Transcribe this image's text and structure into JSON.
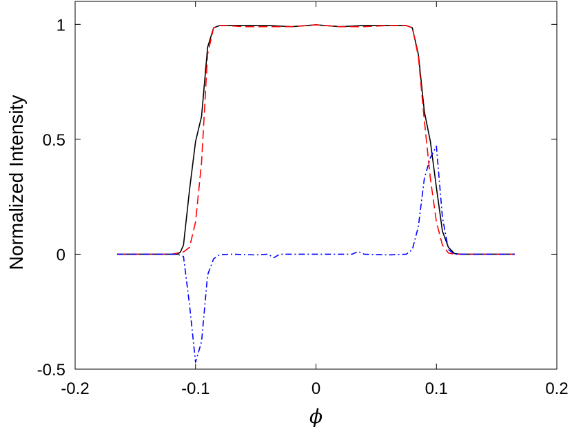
{
  "chart_data": {
    "type": "line",
    "title": "",
    "xlabel": "ϕ",
    "ylabel": "Normalized Intensity",
    "xlim": [
      -0.2,
      0.2
    ],
    "ylim": [
      -0.5,
      1.1
    ],
    "xticks": [
      -0.2,
      -0.1,
      0,
      0.1,
      0.2
    ],
    "xtick_labels": [
      "-0.2",
      "-0.1",
      "0",
      "0.1",
      "0.2"
    ],
    "yticks": [
      -0.5,
      0,
      0.5,
      1
    ],
    "ytick_labels": [
      "-0.5",
      "0",
      "0.5",
      "1"
    ],
    "grid": false,
    "legend": null,
    "series": [
      {
        "color": "#000000",
        "style": "solid",
        "x": [
          -0.165,
          -0.12,
          -0.115,
          -0.1125,
          -0.11,
          -0.105,
          -0.1,
          -0.095,
          -0.09,
          -0.085,
          -0.08,
          -0.075,
          -0.06,
          -0.04,
          -0.02,
          0,
          0.02,
          0.04,
          0.06,
          0.075,
          0.08,
          0.085,
          0.09,
          0.095,
          0.1,
          0.105,
          0.11,
          0.115,
          0.12,
          0.165
        ],
        "y": [
          0,
          0,
          0,
          0.01,
          0.04,
          0.28,
          0.49,
          0.6,
          0.9,
          0.985,
          0.995,
          0.995,
          0.995,
          0.995,
          0.99,
          0.998,
          0.99,
          0.995,
          0.995,
          0.995,
          0.985,
          0.87,
          0.62,
          0.49,
          0.29,
          0.1,
          0.03,
          0.003,
          0,
          0
        ]
      },
      {
        "color": "#ff0000",
        "style": "dashed",
        "x": [
          -0.165,
          -0.12,
          -0.11,
          -0.105,
          -0.1,
          -0.095,
          -0.09,
          -0.085,
          -0.08,
          -0.075,
          -0.06,
          -0.04,
          -0.02,
          0,
          0.02,
          0.04,
          0.06,
          0.075,
          0.08,
          0.085,
          0.09,
          0.095,
          0.1,
          0.105,
          0.11,
          0.115,
          0.12,
          0.165
        ],
        "y": [
          0,
          0,
          0.01,
          0.03,
          0.14,
          0.4,
          0.87,
          0.985,
          0.995,
          0.995,
          0.99,
          0.99,
          0.99,
          0.998,
          0.99,
          0.99,
          0.995,
          0.995,
          0.985,
          0.86,
          0.58,
          0.33,
          0.14,
          0.04,
          0.005,
          0,
          0,
          0
        ]
      },
      {
        "color": "#0000ff",
        "style": "dashdot",
        "x": [
          -0.165,
          -0.12,
          -0.115,
          -0.11,
          -0.105,
          -0.1,
          -0.095,
          -0.09,
          -0.085,
          -0.08,
          -0.07,
          -0.05,
          -0.04,
          -0.035,
          -0.03,
          -0.02,
          0,
          0.02,
          0.03,
          0.035,
          0.04,
          0.06,
          0.075,
          0.08,
          0.085,
          0.09,
          0.095,
          0.1,
          0.105,
          0.11,
          0.115,
          0.12,
          0.165
        ],
        "y": [
          0,
          0,
          0,
          -0.01,
          -0.22,
          -0.47,
          -0.38,
          -0.09,
          -0.02,
          -0.002,
          0,
          -0.003,
          0,
          -0.015,
          0,
          0,
          0,
          0,
          0,
          0.012,
          0,
          -0.003,
          0,
          0.02,
          0.12,
          0.33,
          0.42,
          0.47,
          0.16,
          0.02,
          0,
          0,
          0
        ]
      }
    ]
  }
}
